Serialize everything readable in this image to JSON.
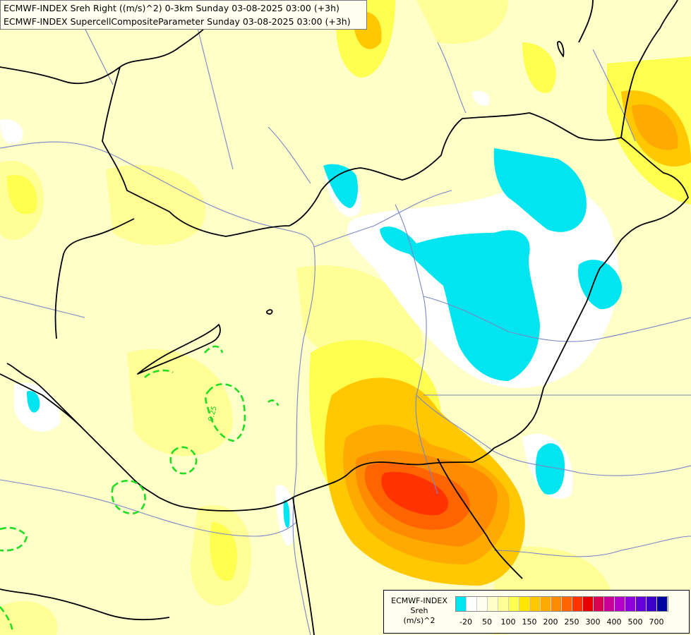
{
  "title_lines": [
    "ECMWF-INDEX Sreh Right ((m/s)^2) 0-3km Sunday 03-08-2025 03:00 (+3h)",
    "ECMWF-INDEX SupercellCompositeParameter Sunday 03-08-2025 03:00 (+3h)"
  ],
  "contour_label": "0.25",
  "legend": {
    "title_lines": [
      "ECMWF-INDEX",
      "Sreh",
      "(m/s)^2"
    ],
    "colors": [
      "#00e5f0",
      "#ffffff",
      "#fffff0",
      "#ffffc8",
      "#ffff96",
      "#ffff50",
      "#ffe600",
      "#ffc800",
      "#ffaa00",
      "#ff8c00",
      "#ff6400",
      "#ff3200",
      "#e60000",
      "#dc0050",
      "#c80096",
      "#b400c8",
      "#8c00dc",
      "#6400dc",
      "#3c00c8",
      "#0000a0"
    ],
    "tick_labels": [
      "-20",
      "50",
      "100",
      "150",
      "200",
      "250",
      "300",
      "400",
      "500",
      "700"
    ]
  },
  "colors": {
    "negative": "#00e5f0",
    "low": "#ffffc8",
    "mid": "#ffff50",
    "high": "#ffc800",
    "orange": "#ffaa00",
    "dark_orange": "#ff8c00",
    "red_orange": "#ff6400",
    "red": "#ff3200",
    "scp_contour": "#22dd22",
    "border": "#000000",
    "river": "#7a86c8"
  }
}
